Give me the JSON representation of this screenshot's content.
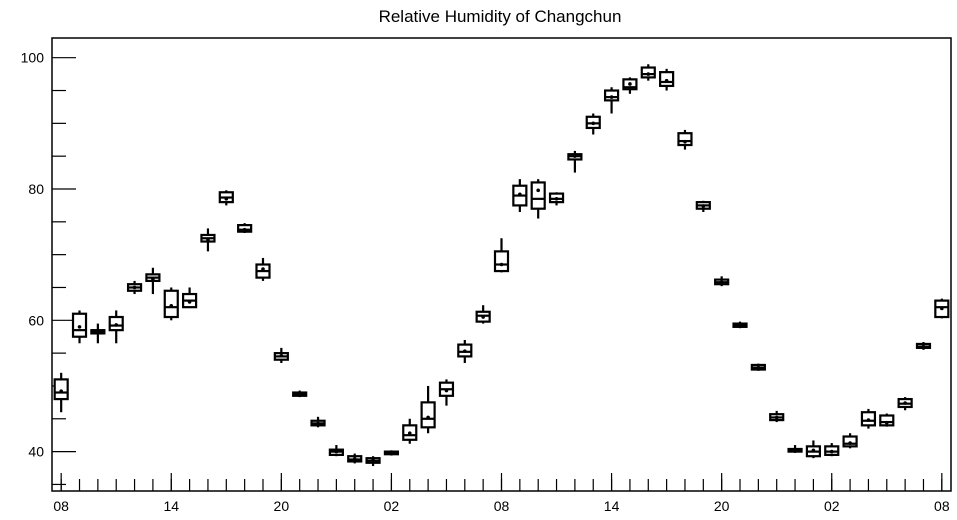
{
  "chart_data": {
    "type": "box",
    "title": "Relative Humidity of Changchun",
    "xlabel": "",
    "ylabel": "",
    "ylim": [
      34,
      103
    ],
    "yticks_major": [
      40,
      60,
      80,
      100
    ],
    "yticks_minor_step": 5,
    "xticklabels": [
      "08",
      "14",
      "20",
      "02",
      "08",
      "14",
      "20",
      "02",
      "08"
    ],
    "xticklabel_positions_hours": [
      0,
      6,
      12,
      18,
      24,
      30,
      36,
      42,
      48
    ],
    "x_unit": "hours since 08",
    "grid": false,
    "series": [
      {
        "hours": [
          0,
          1,
          2,
          3,
          4,
          5,
          6,
          7,
          8,
          9,
          10,
          11,
          12,
          13,
          14,
          15,
          16,
          17,
          18,
          19,
          20,
          21,
          22,
          23,
          24,
          25,
          26,
          27,
          28,
          29,
          30,
          31,
          32,
          33,
          34,
          35,
          36,
          37,
          38,
          39,
          40,
          41,
          42,
          43,
          44,
          45,
          46,
          47,
          48
        ],
        "q1": [
          48,
          57.5,
          58,
          58.5,
          64.5,
          66,
          60.5,
          62,
          72,
          78,
          73.5,
          66.5,
          54,
          48.5,
          44,
          39.5,
          38.5,
          38.3,
          39.6,
          41.8,
          43.7,
          48.5,
          54.5,
          59.8,
          67.5,
          77.5,
          77,
          78,
          84.5,
          89.3,
          93.5,
          95.2,
          97,
          95.7,
          86.7,
          77,
          65.5,
          59,
          52.5,
          44.8,
          40,
          39.3,
          39.5,
          40.8,
          44,
          44,
          46.8,
          55.8,
          60.5
        ],
        "median": [
          49,
          58.5,
          58.2,
          59.2,
          65,
          66.5,
          62,
          63,
          72.5,
          78.7,
          73.8,
          67.5,
          54.5,
          48.7,
          44.3,
          40,
          38.8,
          38.6,
          39.8,
          42.5,
          45,
          49.5,
          55.2,
          60.7,
          68.5,
          79,
          78.5,
          78.5,
          85,
          90,
          94,
          95.5,
          97.5,
          96.3,
          87.3,
          77.5,
          65.8,
          59.2,
          52.8,
          45.2,
          40.1,
          40,
          40,
          41.2,
          44.7,
          44.5,
          47.3,
          56,
          62
        ],
        "mean": [
          49.2,
          59,
          58.1,
          59.3,
          65,
          66.3,
          62.2,
          62.8,
          72.3,
          78.5,
          73.8,
          67.8,
          54.6,
          48.7,
          44.3,
          40,
          38.9,
          38.7,
          39.8,
          42.8,
          45.2,
          49.3,
          55.3,
          60.5,
          68.5,
          79.2,
          79.8,
          78.5,
          85,
          90,
          94,
          96,
          97.5,
          96.5,
          87.2,
          77.4,
          65.8,
          59.2,
          52.8,
          45.2,
          40.2,
          40.2,
          40,
          41.3,
          44.8,
          44.4,
          47.4,
          56,
          61.8
        ],
        "q3": [
          51,
          61,
          58.5,
          60.5,
          65.5,
          67,
          64.5,
          64,
          73,
          79.5,
          74.5,
          68.5,
          55,
          49,
          44.7,
          40.3,
          39.3,
          39,
          40,
          44,
          47.5,
          50.5,
          56.3,
          61.3,
          70.5,
          80.5,
          81,
          79.3,
          85.3,
          91,
          95,
          96.7,
          98.5,
          97.8,
          88.5,
          78,
          66.2,
          59.5,
          53.2,
          45.7,
          40.4,
          40.8,
          40.8,
          42.3,
          46,
          45.5,
          48,
          56.4,
          63
        ],
        "whislo": [
          46,
          56.5,
          56.5,
          56.5,
          64,
          64,
          60,
          62,
          70.5,
          77.5,
          73.3,
          66,
          53.5,
          48.3,
          43.7,
          39.3,
          38.2,
          37.8,
          39.4,
          41.2,
          42.8,
          47,
          53.5,
          59.5,
          67.3,
          76.5,
          75.5,
          77.5,
          82.5,
          88.3,
          91.5,
          94.5,
          96.5,
          95,
          86,
          76.5,
          65.2,
          58.8,
          52.3,
          44.5,
          39.8,
          39,
          39.3,
          40.5,
          43.5,
          43.8,
          46.3,
          55.5,
          60.3
        ],
        "whishi": [
          52,
          61.5,
          59.5,
          61.5,
          66,
          68,
          65,
          65,
          74,
          79.8,
          74.8,
          69.5,
          55.8,
          49.3,
          45.3,
          41,
          39.7,
          39.3,
          40.2,
          45,
          50,
          51,
          57,
          62.3,
          72.5,
          81.5,
          81.5,
          79.5,
          85.8,
          91.5,
          95.5,
          97,
          99,
          98.3,
          89,
          78.2,
          66.7,
          59.8,
          53.4,
          46.2,
          41,
          41.7,
          41.3,
          42.8,
          46.5,
          45.8,
          48.3,
          56.7,
          63.3
        ]
      }
    ]
  }
}
